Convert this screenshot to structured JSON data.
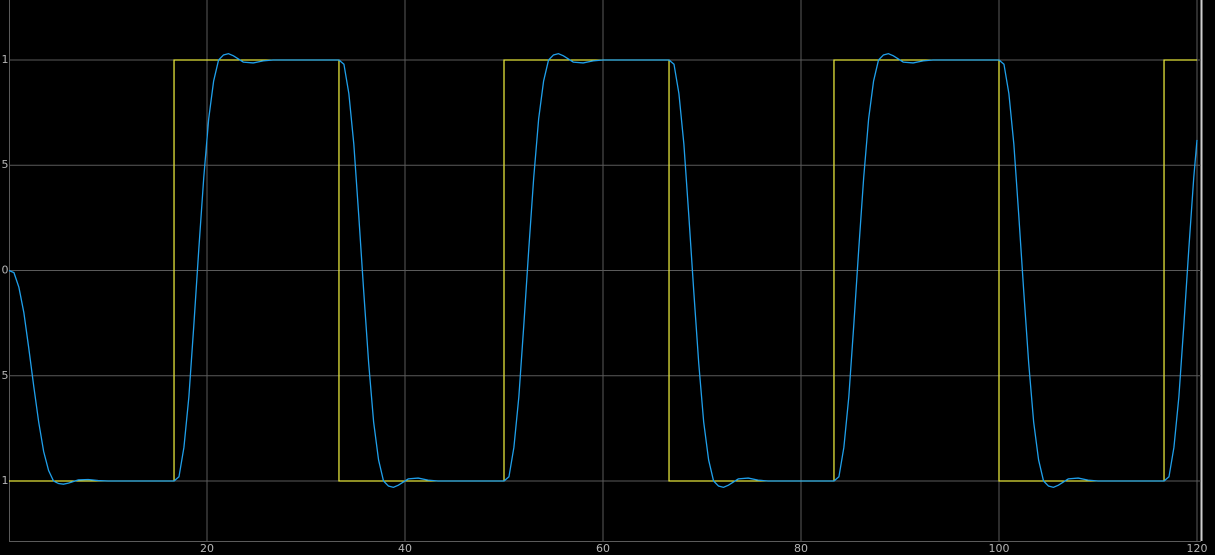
{
  "chart_data": {
    "type": "line",
    "xlim": [
      0,
      120
    ],
    "ylim": [
      -1.285,
      1.285
    ],
    "xticks": [
      20,
      40,
      60,
      80,
      100,
      120
    ],
    "yticks": [
      {
        "value": -1,
        "label": "1"
      },
      {
        "value": -0.5,
        "label": "5"
      },
      0,
      {
        "value": 0.5,
        "label": "5"
      },
      1
    ],
    "grid": true,
    "series": [
      {
        "color": "#e3e33a",
        "x": [
          0,
          16.67,
          16.67,
          33.33,
          33.33,
          50,
          50,
          66.67,
          66.67,
          83.33,
          83.33,
          100,
          100,
          116.67,
          116.67,
          120
        ],
        "values": [
          -1,
          -1,
          1,
          1,
          -1,
          -1,
          1,
          1,
          -1,
          -1,
          1,
          1,
          -1,
          -1,
          1,
          1
        ]
      },
      {
        "color": "#1f9fea",
        "x": [
          0,
          0.5,
          1,
          1.5,
          2,
          2.5,
          3,
          3.5,
          4,
          4.5,
          5,
          5.5,
          6,
          7,
          8,
          9,
          10,
          16.67,
          17.17,
          17.67,
          18.17,
          18.67,
          19.17,
          19.67,
          20.17,
          20.67,
          21.17,
          21.67,
          22.17,
          22.67,
          23.67,
          24.67,
          25.67,
          26.67,
          33.33,
          33.83,
          34.33,
          34.83,
          35.33,
          35.83,
          36.33,
          36.83,
          37.33,
          37.83,
          38.33,
          38.83,
          39.33,
          40.33,
          41.33,
          42.33,
          43.33,
          50,
          50.5,
          51,
          51.5,
          52,
          52.5,
          53,
          53.5,
          54,
          54.5,
          55,
          55.5,
          56,
          57,
          58,
          59,
          60,
          66.67,
          67.17,
          67.67,
          68.17,
          68.67,
          69.17,
          69.67,
          70.17,
          70.67,
          71.17,
          71.67,
          72.17,
          72.67,
          73.67,
          74.67,
          75.67,
          76.67,
          83.33,
          83.83,
          84.33,
          84.83,
          85.33,
          85.83,
          86.33,
          86.83,
          87.33,
          87.83,
          88.33,
          88.83,
          89.33,
          90.33,
          91.33,
          92.33,
          93.33,
          100,
          100.5,
          101,
          101.5,
          102,
          102.5,
          103,
          103.5,
          104,
          104.5,
          105,
          105.5,
          106,
          107,
          108,
          109,
          110,
          116.67,
          117.17,
          117.67,
          118.17,
          118.67,
          119.17,
          119.67,
          120
        ],
        "values": [
          0,
          -0.01,
          -0.08,
          -0.2,
          -0.37,
          -0.55,
          -0.72,
          -0.86,
          -0.95,
          -1,
          -1.012,
          -1.015,
          -1.01,
          -0.995,
          -0.993,
          -0.998,
          -1,
          -1,
          -0.98,
          -0.84,
          -0.6,
          -0.26,
          0.1,
          0.44,
          0.72,
          0.9,
          1,
          1.024,
          1.03,
          1.02,
          0.99,
          0.986,
          0.996,
          1,
          1,
          0.98,
          0.84,
          0.6,
          0.26,
          -0.1,
          -0.44,
          -0.72,
          -0.9,
          -1,
          -1.024,
          -1.03,
          -1.02,
          -0.99,
          -0.986,
          -0.996,
          -1,
          -1,
          -0.98,
          -0.84,
          -0.6,
          -0.26,
          0.1,
          0.44,
          0.72,
          0.9,
          1,
          1.024,
          1.03,
          1.02,
          0.99,
          0.986,
          0.996,
          1,
          1,
          0.98,
          0.84,
          0.6,
          0.26,
          -0.1,
          -0.44,
          -0.72,
          -0.9,
          -1,
          -1.024,
          -1.03,
          -1.02,
          -0.99,
          -0.986,
          -0.996,
          -1,
          -1,
          -0.98,
          -0.84,
          -0.6,
          -0.26,
          0.1,
          0.44,
          0.72,
          0.9,
          1,
          1.024,
          1.03,
          1.02,
          0.99,
          0.986,
          0.996,
          1,
          1,
          0.98,
          0.84,
          0.6,
          0.26,
          -0.1,
          -0.44,
          -0.72,
          -0.9,
          -1,
          -1.024,
          -1.03,
          -1.02,
          -0.99,
          -0.986,
          -0.996,
          -1,
          -1,
          -0.98,
          -0.84,
          -0.6,
          -0.26,
          0.1,
          0.44,
          0.62
        ]
      }
    ]
  }
}
